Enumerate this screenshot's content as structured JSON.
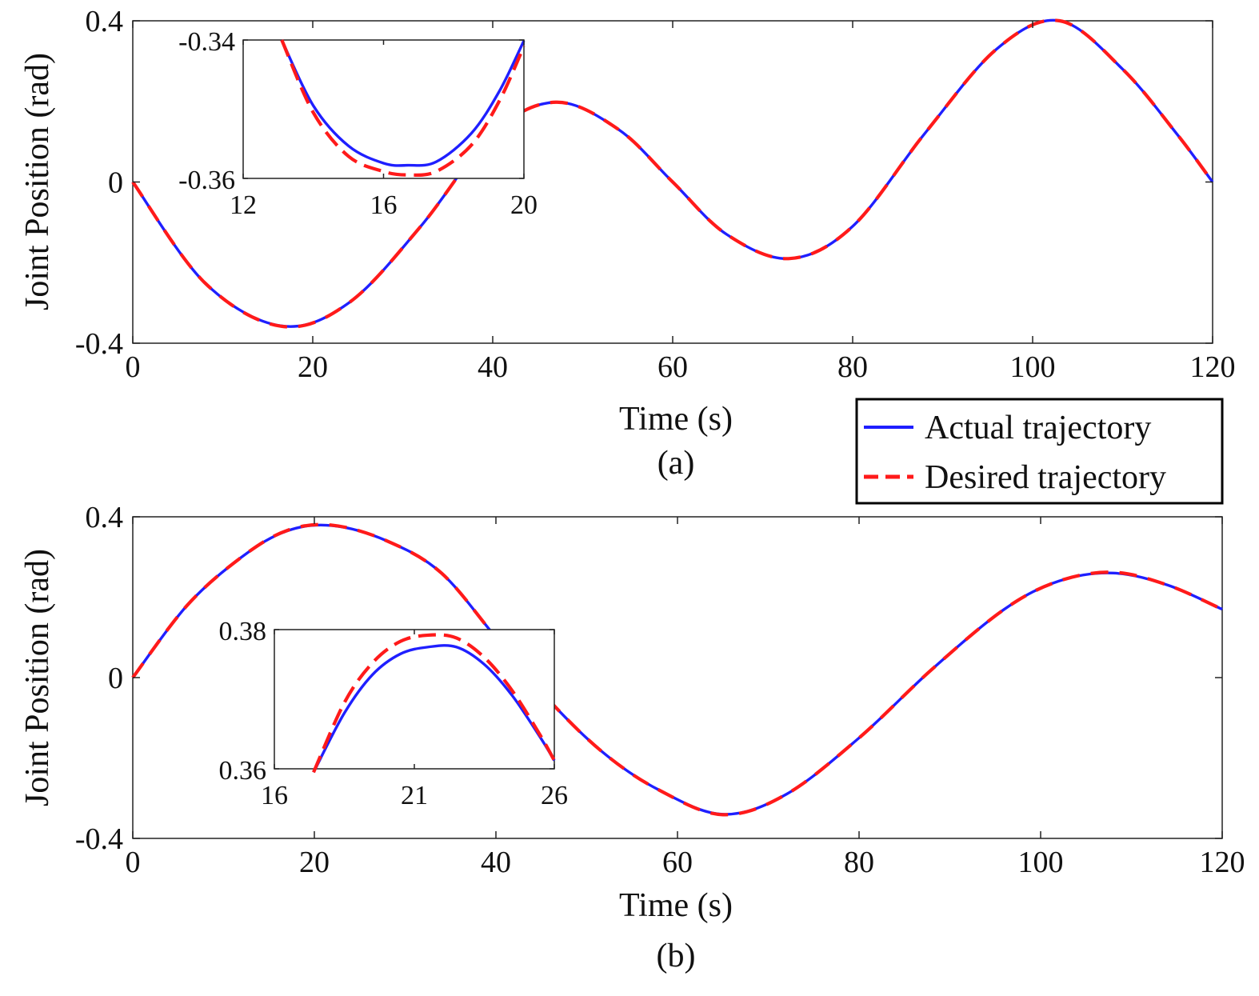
{
  "colors": {
    "actual": "#1f1fff",
    "desired": "#ff1a1a"
  },
  "legend": {
    "actual_label": "Actual trajectory",
    "desired_label": "Desired trajectory"
  },
  "chart_data": [
    {
      "id": "a",
      "type": "line",
      "caption": "(a)",
      "xlabel": "Time (s)",
      "ylabel": "Joint Position (rad)",
      "xlim": [
        0,
        120
      ],
      "ylim": [
        -0.4,
        0.4
      ],
      "xticks": [
        0,
        20,
        40,
        60,
        80,
        100,
        120
      ],
      "yticks": [
        -0.4,
        0,
        0.4
      ],
      "xtick_labels": [
        "0",
        "20",
        "40",
        "60",
        "80",
        "100",
        "120"
      ],
      "ytick_labels": [
        "-0.4",
        "0",
        "0.4"
      ],
      "series": [
        {
          "name": "Actual trajectory",
          "style": "solid",
          "x": [
            0,
            8,
            16.5,
            24,
            32,
            40,
            47,
            54,
            60,
            66,
            73,
            80,
            88,
            96,
            103,
            110,
            116,
            120
          ],
          "y": [
            0,
            -0.25,
            -0.357,
            -0.3,
            -0.11,
            0.12,
            0.198,
            0.13,
            0.0,
            -0.13,
            -0.19,
            -0.11,
            0.12,
            0.33,
            0.4,
            0.28,
            0.12,
            0.0
          ]
        },
        {
          "name": "Desired trajectory",
          "style": "dashed",
          "x": [
            0,
            8,
            16.5,
            24,
            32,
            40,
            47,
            54,
            60,
            66,
            73,
            80,
            88,
            96,
            103,
            110,
            116,
            120
          ],
          "y": [
            0,
            -0.25,
            -0.358,
            -0.3,
            -0.11,
            0.12,
            0.198,
            0.13,
            0.0,
            -0.13,
            -0.19,
            -0.11,
            0.12,
            0.33,
            0.4,
            0.28,
            0.12,
            0.0
          ]
        }
      ],
      "inset": {
        "xlim": [
          12,
          20
        ],
        "ylim": [
          -0.36,
          -0.34
        ],
        "xticks": [
          12,
          16,
          20
        ],
        "yticks": [
          -0.36,
          -0.34
        ],
        "xtick_labels": [
          "12",
          "16",
          "20"
        ],
        "ytick_labels": [
          "-0.36",
          "-0.34"
        ],
        "series": [
          {
            "name": "Actual trajectory",
            "style": "solid",
            "x": [
              13.1,
              14,
              15,
              16,
              16.7,
              17.5,
              18.5,
              19.3,
              20
            ],
            "y": [
              -0.34,
              -0.3495,
              -0.3553,
              -0.3578,
              -0.3581,
              -0.3576,
              -0.3535,
              -0.3474,
              -0.3401
            ]
          },
          {
            "name": "Desired trajectory",
            "style": "dashed",
            "x": [
              13.1,
              14,
              15,
              16,
              16.7,
              17.5,
              18.5,
              19.3,
              20
            ],
            "y": [
              -0.34,
              -0.3505,
              -0.3568,
              -0.359,
              -0.3595,
              -0.359,
              -0.3552,
              -0.3488,
              -0.3409
            ]
          }
        ]
      }
    },
    {
      "id": "b",
      "type": "line",
      "caption": "(b)",
      "xlabel": "Time (s)",
      "ylabel": "Joint Position (rad)",
      "xlim": [
        0,
        120
      ],
      "ylim": [
        -0.4,
        0.4
      ],
      "xticks": [
        0,
        20,
        40,
        60,
        80,
        100,
        120
      ],
      "yticks": [
        -0.4,
        0,
        0.4
      ],
      "xtick_labels": [
        "0",
        "20",
        "40",
        "60",
        "80",
        "100",
        "120"
      ],
      "ytick_labels": [
        "-0.4",
        "0",
        "0.4"
      ],
      "series": [
        {
          "name": "Actual trajectory",
          "style": "solid",
          "x": [
            0,
            6,
            12,
            17,
            22,
            28,
            34,
            40,
            46,
            52,
            58,
            65,
            72,
            80,
            88,
            96,
            102,
            108,
            114,
            120
          ],
          "y": [
            0,
            0.18,
            0.3,
            0.365,
            0.378,
            0.34,
            0.26,
            0.1,
            -0.06,
            -0.19,
            -0.28,
            -0.34,
            -0.29,
            -0.15,
            0.02,
            0.17,
            0.24,
            0.26,
            0.23,
            0.17
          ]
        },
        {
          "name": "Desired trajectory",
          "style": "dashed",
          "x": [
            0,
            6,
            12,
            17,
            22,
            28,
            34,
            40,
            46,
            52,
            58,
            65,
            72,
            80,
            88,
            96,
            102,
            108,
            114,
            120
          ],
          "y": [
            0,
            0.18,
            0.3,
            0.366,
            0.379,
            0.34,
            0.26,
            0.1,
            -0.06,
            -0.19,
            -0.28,
            -0.341,
            -0.29,
            -0.15,
            0.02,
            0.17,
            0.24,
            0.262,
            0.23,
            0.17
          ]
        }
      ],
      "inset": {
        "xlim": [
          16,
          26
        ],
        "ylim": [
          0.36,
          0.38
        ],
        "xticks": [
          16,
          21,
          26
        ],
        "yticks": [
          0.36,
          0.38
        ],
        "xtick_labels": [
          "16",
          "21",
          "26"
        ],
        "ytick_labels": [
          "0.36",
          "0.38"
        ],
        "series": [
          {
            "name": "Actual trajectory",
            "style": "solid",
            "x": [
              17.4,
              18.5,
              19.5,
              20.5,
              21.5,
              22.5,
              23.5,
              24.5,
              25.5,
              26
            ],
            "y": [
              0.3595,
              0.368,
              0.3735,
              0.3765,
              0.3775,
              0.3775,
              0.375,
              0.3705,
              0.3645,
              0.3612
            ]
          },
          {
            "name": "Desired trajectory",
            "style": "dashed",
            "x": [
              17.4,
              18.5,
              19.5,
              20.5,
              21.5,
              22.5,
              23.5,
              24.5,
              25.5,
              26
            ],
            "y": [
              0.3595,
              0.3695,
              0.3752,
              0.3783,
              0.3792,
              0.3788,
              0.376,
              0.3712,
              0.3648,
              0.3612
            ]
          }
        ]
      }
    }
  ]
}
